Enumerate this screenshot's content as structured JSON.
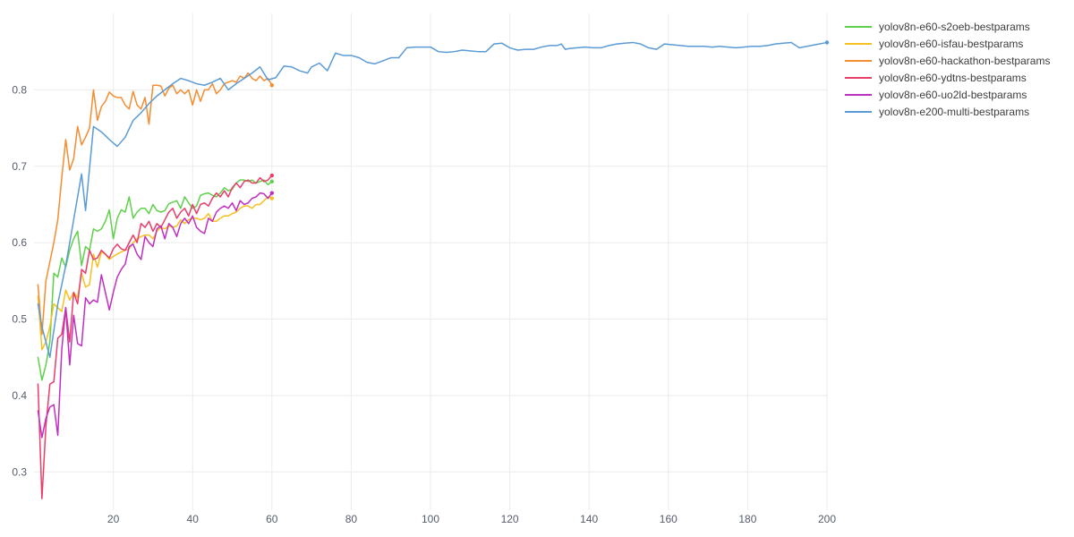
{
  "chart_data": {
    "type": "line",
    "title": "",
    "xlabel": "",
    "ylabel": "",
    "xlim": [
      0,
      200
    ],
    "ylim": [
      0.25,
      0.9
    ],
    "xticks": [
      20,
      40,
      60,
      80,
      100,
      120,
      140,
      160,
      180,
      200
    ],
    "yticks": [
      0.3,
      0.4,
      0.5,
      0.6,
      0.7,
      0.8
    ],
    "grid": true,
    "legend_position": "top-right",
    "series": [
      {
        "name": "yolov8n-e60-s2oeb-bestparams",
        "color": "#5fd04a",
        "x": [
          1,
          2,
          3,
          4,
          5,
          6,
          7,
          8,
          9,
          10,
          11,
          12,
          13,
          14,
          15,
          16,
          17,
          18,
          19,
          20,
          21,
          22,
          23,
          24,
          25,
          26,
          27,
          28,
          29,
          30,
          31,
          32,
          33,
          34,
          35,
          36,
          37,
          38,
          39,
          40,
          41,
          42,
          43,
          44,
          45,
          46,
          47,
          48,
          49,
          50,
          51,
          52,
          53,
          54,
          55,
          56,
          57,
          58,
          59,
          60
        ],
        "y": [
          0.45,
          0.42,
          0.44,
          0.47,
          0.56,
          0.555,
          0.58,
          0.568,
          0.59,
          0.605,
          0.615,
          0.57,
          0.595,
          0.59,
          0.618,
          0.615,
          0.618,
          0.628,
          0.643,
          0.605,
          0.632,
          0.643,
          0.64,
          0.66,
          0.632,
          0.64,
          0.645,
          0.645,
          0.638,
          0.65,
          0.642,
          0.64,
          0.642,
          0.651,
          0.653,
          0.655,
          0.645,
          0.66,
          0.652,
          0.645,
          0.648,
          0.662,
          0.664,
          0.665,
          0.662,
          0.66,
          0.665,
          0.672,
          0.668,
          0.67,
          0.678,
          0.682,
          0.682,
          0.68,
          0.682,
          0.678,
          0.68,
          0.682,
          0.676,
          0.68
        ]
      },
      {
        "name": "yolov8n-e60-isfau-bestparams",
        "color": "#f5c020",
        "x": [
          1,
          2,
          3,
          4,
          5,
          6,
          7,
          8,
          9,
          10,
          11,
          12,
          13,
          14,
          15,
          16,
          17,
          18,
          19,
          20,
          21,
          22,
          23,
          24,
          25,
          26,
          27,
          28,
          29,
          30,
          31,
          32,
          33,
          34,
          35,
          36,
          37,
          38,
          39,
          40,
          41,
          42,
          43,
          44,
          45,
          46,
          47,
          48,
          49,
          50,
          51,
          52,
          53,
          54,
          55,
          56,
          57,
          58,
          59,
          60
        ],
        "y": [
          0.53,
          0.46,
          0.47,
          0.49,
          0.52,
          0.515,
          0.51,
          0.538,
          0.525,
          0.535,
          0.528,
          0.56,
          0.542,
          0.545,
          0.585,
          0.568,
          0.588,
          0.585,
          0.578,
          0.582,
          0.585,
          0.588,
          0.59,
          0.592,
          0.6,
          0.605,
          0.608,
          0.61,
          0.61,
          0.605,
          0.615,
          0.62,
          0.618,
          0.622,
          0.62,
          0.622,
          0.63,
          0.625,
          0.63,
          0.632,
          0.632,
          0.63,
          0.632,
          0.638,
          0.628,
          0.628,
          0.632,
          0.635,
          0.635,
          0.638,
          0.64,
          0.645,
          0.648,
          0.648,
          0.645,
          0.65,
          0.65,
          0.655,
          0.66,
          0.658
        ]
      },
      {
        "name": "yolov8n-e60-hackathon-bestparams",
        "color": "#f58c30",
        "x": [
          1,
          2,
          3,
          4,
          5,
          6,
          7,
          8,
          9,
          10,
          11,
          12,
          13,
          14,
          15,
          16,
          17,
          18,
          19,
          20,
          21,
          22,
          23,
          24,
          25,
          26,
          27,
          28,
          29,
          30,
          31,
          32,
          33,
          34,
          35,
          36,
          37,
          38,
          39,
          40,
          41,
          42,
          43,
          44,
          45,
          46,
          47,
          48,
          49,
          50,
          51,
          52,
          53,
          54,
          55,
          56,
          57,
          58,
          59,
          60
        ],
        "y": [
          0.545,
          0.48,
          0.55,
          0.575,
          0.6,
          0.63,
          0.685,
          0.735,
          0.695,
          0.71,
          0.752,
          0.728,
          0.738,
          0.75,
          0.8,
          0.76,
          0.778,
          0.785,
          0.797,
          0.792,
          0.79,
          0.79,
          0.78,
          0.775,
          0.798,
          0.78,
          0.775,
          0.79,
          0.755,
          0.806,
          0.806,
          0.805,
          0.792,
          0.802,
          0.806,
          0.795,
          0.8,
          0.795,
          0.8,
          0.78,
          0.8,
          0.785,
          0.8,
          0.8,
          0.808,
          0.795,
          0.8,
          0.808,
          0.81,
          0.812,
          0.81,
          0.818,
          0.815,
          0.822,
          0.815,
          0.812,
          0.818,
          0.812,
          0.815,
          0.806
        ]
      },
      {
        "name": "yolov8n-e60-ydtns-bestparams",
        "color": "#e83e6a",
        "x": [
          1,
          2,
          3,
          4,
          5,
          6,
          7,
          8,
          9,
          10,
          11,
          12,
          13,
          14,
          15,
          16,
          17,
          18,
          19,
          20,
          21,
          22,
          23,
          24,
          25,
          26,
          27,
          28,
          29,
          30,
          31,
          32,
          33,
          34,
          35,
          36,
          37,
          38,
          39,
          40,
          41,
          42,
          43,
          44,
          45,
          46,
          47,
          48,
          49,
          50,
          51,
          52,
          53,
          54,
          55,
          56,
          57,
          58,
          59,
          60
        ],
        "y": [
          0.415,
          0.265,
          0.36,
          0.415,
          0.418,
          0.475,
          0.48,
          0.515,
          0.47,
          0.535,
          0.52,
          0.565,
          0.56,
          0.59,
          0.578,
          0.58,
          0.59,
          0.585,
          0.58,
          0.592,
          0.598,
          0.592,
          0.59,
          0.6,
          0.61,
          0.6,
          0.625,
          0.62,
          0.628,
          0.615,
          0.625,
          0.62,
          0.63,
          0.64,
          0.645,
          0.632,
          0.64,
          0.645,
          0.635,
          0.65,
          0.638,
          0.65,
          0.652,
          0.648,
          0.658,
          0.665,
          0.66,
          0.668,
          0.66,
          0.672,
          0.678,
          0.672,
          0.68,
          0.682,
          0.678,
          0.678,
          0.685,
          0.68,
          0.682,
          0.688
        ]
      },
      {
        "name": "yolov8n-e60-uo2ld-bestparams",
        "color": "#c030c0",
        "x": [
          1,
          2,
          3,
          4,
          5,
          6,
          7,
          8,
          9,
          10,
          11,
          12,
          13,
          14,
          15,
          16,
          17,
          18,
          19,
          20,
          21,
          22,
          23,
          24,
          25,
          26,
          27,
          28,
          29,
          30,
          31,
          32,
          33,
          34,
          35,
          36,
          37,
          38,
          39,
          40,
          41,
          42,
          43,
          44,
          45,
          46,
          47,
          48,
          49,
          50,
          51,
          52,
          53,
          54,
          55,
          56,
          57,
          58,
          59,
          60
        ],
        "y": [
          0.38,
          0.345,
          0.37,
          0.385,
          0.388,
          0.348,
          0.46,
          0.515,
          0.44,
          0.505,
          0.468,
          0.465,
          0.528,
          0.52,
          0.525,
          0.522,
          0.558,
          0.535,
          0.512,
          0.535,
          0.555,
          0.565,
          0.572,
          0.595,
          0.598,
          0.585,
          0.578,
          0.608,
          0.6,
          0.595,
          0.618,
          0.622,
          0.605,
          0.625,
          0.62,
          0.608,
          0.625,
          0.632,
          0.625,
          0.635,
          0.62,
          0.615,
          0.612,
          0.632,
          0.628,
          0.64,
          0.645,
          0.648,
          0.645,
          0.652,
          0.642,
          0.655,
          0.65,
          0.652,
          0.658,
          0.66,
          0.665,
          0.664,
          0.658,
          0.665
        ]
      },
      {
        "name": "yolov8n-e200-multi-bestparams",
        "color": "#5b9bd5",
        "x": [
          1,
          2,
          4,
          6,
          8,
          10,
          12,
          13,
          15,
          17,
          19,
          21,
          23,
          25,
          27,
          29,
          31,
          33,
          35,
          37,
          39,
          41,
          43,
          45,
          47,
          49,
          51,
          53,
          55,
          57,
          59,
          61,
          63,
          65,
          67,
          69,
          70,
          72,
          74,
          76,
          78,
          80,
          82,
          84,
          86,
          88,
          90,
          92,
          94,
          96,
          98,
          100,
          102,
          104,
          106,
          108,
          110,
          112,
          114,
          116,
          118,
          120,
          122,
          124,
          126,
          128,
          130,
          132,
          133,
          134,
          135,
          137,
          139,
          141,
          143,
          145,
          147,
          149,
          151,
          153,
          155,
          157,
          159,
          161,
          163,
          165,
          167,
          169,
          171,
          173,
          175,
          177,
          179,
          181,
          183,
          185,
          187,
          189,
          191,
          193,
          195,
          197,
          199,
          200
        ],
        "y": [
          0.52,
          0.49,
          0.45,
          0.52,
          0.57,
          0.63,
          0.69,
          0.642,
          0.752,
          0.745,
          0.735,
          0.726,
          0.738,
          0.76,
          0.77,
          0.782,
          0.792,
          0.8,
          0.808,
          0.815,
          0.812,
          0.808,
          0.806,
          0.81,
          0.815,
          0.8,
          0.808,
          0.815,
          0.822,
          0.83,
          0.813,
          0.816,
          0.831,
          0.83,
          0.825,
          0.822,
          0.83,
          0.835,
          0.825,
          0.848,
          0.845,
          0.845,
          0.842,
          0.836,
          0.834,
          0.838,
          0.842,
          0.842,
          0.855,
          0.856,
          0.856,
          0.856,
          0.85,
          0.849,
          0.85,
          0.852,
          0.851,
          0.85,
          0.85,
          0.86,
          0.861,
          0.855,
          0.852,
          0.853,
          0.853,
          0.856,
          0.858,
          0.858,
          0.86,
          0.853,
          0.854,
          0.855,
          0.856,
          0.855,
          0.855,
          0.858,
          0.86,
          0.861,
          0.862,
          0.86,
          0.855,
          0.853,
          0.86,
          0.859,
          0.858,
          0.857,
          0.857,
          0.857,
          0.856,
          0.857,
          0.856,
          0.855,
          0.856,
          0.857,
          0.857,
          0.858,
          0.86,
          0.861,
          0.862,
          0.855,
          0.857,
          0.859,
          0.861,
          0.862
        ]
      }
    ]
  }
}
